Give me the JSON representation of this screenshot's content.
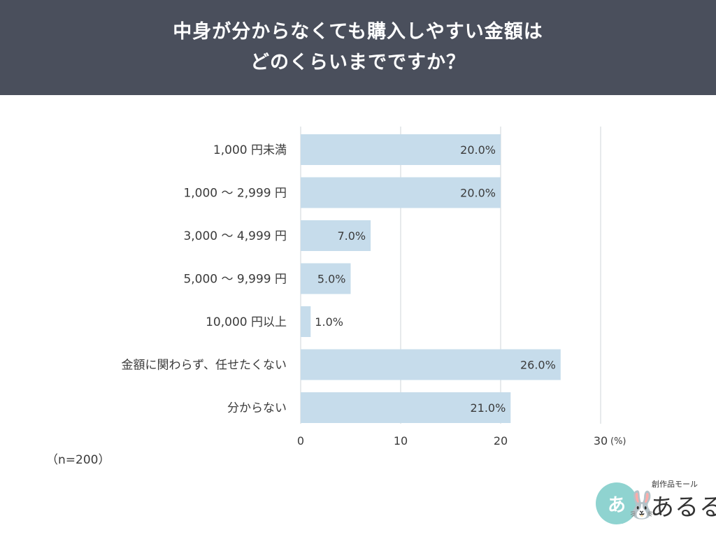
{
  "header": {
    "title_line1": "中身が分からなくても購入しやすい金額は",
    "title_line2": "どのくらいまでですか？"
  },
  "sample_note": "（n=200）",
  "logo": {
    "circle_text": "あ",
    "small_text": "創作品モール",
    "big_text": "あるる"
  },
  "colors": {
    "header_bg": "#4a4f5c",
    "bar": "#c6dceb",
    "grid": "#cfd4da",
    "text": "#3b3b3b"
  },
  "chart_data": {
    "type": "bar",
    "orientation": "horizontal",
    "categories": [
      "1,000 円未満",
      "1,000 ～ 2,999 円",
      "3,000 ～ 4,999 円",
      "5,000 ～ 9,999 円",
      "10,000 円以上",
      "金額に関わらず、任せたくない",
      "分からない"
    ],
    "values": [
      20.0,
      20.0,
      7.0,
      5.0,
      1.0,
      26.0,
      21.0
    ],
    "value_labels": [
      "20.0%",
      "20.0%",
      "7.0%",
      "5.0%",
      "1.0%",
      "26.0%",
      "21.0%"
    ],
    "xlim": [
      0,
      30
    ],
    "xticks": [
      0,
      10,
      20,
      30
    ],
    "xtick_labels": [
      "0",
      "10",
      "20",
      "30"
    ],
    "unit_label": "(%)",
    "grid": true
  }
}
